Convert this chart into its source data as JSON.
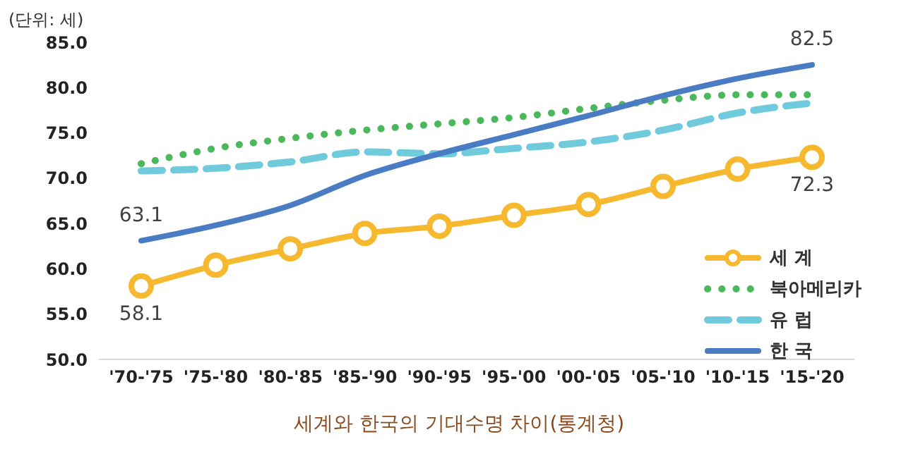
{
  "chart_data": {
    "type": "line",
    "title": "세계와 한국의 기대수명 차이(통계청)",
    "ylabel": "(단위: 세)",
    "categories": [
      "'70-'75",
      "'75-'80",
      "'80-'85",
      "'85-'90",
      "'90-'95",
      "'95-'00",
      "'00-'05",
      "'05-'10",
      "'10-'15",
      "'15-'20"
    ],
    "ylim": [
      50,
      85
    ],
    "yticks": [
      {
        "value": 50,
        "label": "50.0"
      },
      {
        "value": 55,
        "label": "55.0"
      },
      {
        "value": 60,
        "label": "60.0"
      },
      {
        "value": 65,
        "label": "65.0"
      },
      {
        "value": 70,
        "label": "70.0"
      },
      {
        "value": 75,
        "label": "75.0"
      },
      {
        "value": 80,
        "label": "80.0"
      },
      {
        "value": 85,
        "label": "85.0"
      }
    ],
    "grid": false,
    "legend": "bottom right",
    "series": [
      {
        "name": "세 계",
        "color": "#f5b82e",
        "marker": "circle",
        "line_style": "solid",
        "values": [
          58.1,
          60.4,
          62.2,
          63.9,
          64.7,
          65.9,
          67.1,
          69.1,
          71.0,
          72.3
        ],
        "value_labels": [
          "58.1",
          null,
          null,
          null,
          null,
          null,
          null,
          null,
          null,
          "72.3"
        ]
      },
      {
        "name": "북아메리카",
        "color": "#4cb85c",
        "marker": "none",
        "line_style": "dotted",
        "values": [
          71.6,
          73.3,
          74.4,
          75.3,
          76.0,
          76.7,
          77.7,
          78.6,
          79.2,
          79.2
        ]
      },
      {
        "name": "유 럽",
        "color": "#6fcbdc",
        "marker": "none",
        "line_style": "dashed",
        "values": [
          70.8,
          71.1,
          71.8,
          72.9,
          72.7,
          73.3,
          74.0,
          75.3,
          77.2,
          78.3
        ]
      },
      {
        "name": "한 국",
        "color": "#4a7cc4",
        "marker": "none",
        "line_style": "solid",
        "values": [
          63.1,
          64.8,
          67.0,
          70.3,
          72.7,
          74.8,
          76.9,
          79.1,
          81.0,
          82.5
        ],
        "value_labels": [
          "63.1",
          null,
          null,
          null,
          null,
          null,
          null,
          null,
          null,
          "82.5"
        ]
      }
    ]
  }
}
